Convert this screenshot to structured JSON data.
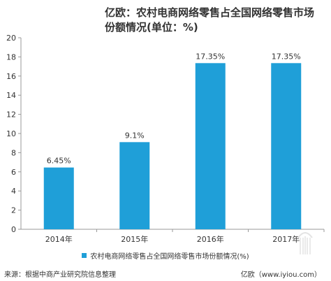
{
  "chart_data": {
    "type": "bar",
    "title": "亿欧：农村电商网络零售占全国网络零售市场份额情况(单位：%)",
    "categories": [
      "2014年",
      "2015年",
      "2016年",
      "2017年"
    ],
    "series": [
      {
        "name": "农村电商网络零售占全国网络零售市场份额情况(%)",
        "values": [
          6.45,
          9.1,
          17.35,
          17.35
        ],
        "labels": [
          "6.45%",
          "9.1%",
          "17.35%",
          "17.35%"
        ]
      }
    ],
    "ylim": [
      0,
      20
    ],
    "yticks": [
      0,
      2,
      4,
      6,
      8,
      10,
      12,
      14,
      16,
      18,
      20
    ],
    "grid": false,
    "legend": "bottom",
    "bar_color": "#1f9fd8"
  },
  "footer": {
    "source": "来源：根据中商产业研究院信息整理",
    "brand": "亿欧（www.iyiou.com）"
  }
}
